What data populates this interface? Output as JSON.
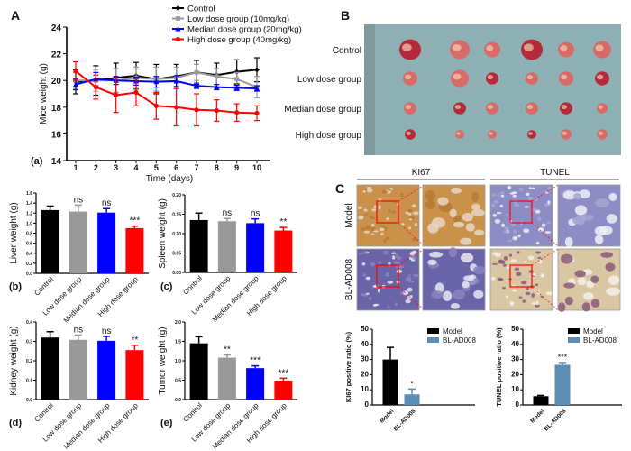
{
  "panel_labels": {
    "A": "A",
    "B": "B",
    "C": "C",
    "a": "(a)",
    "b": "(b)",
    "c": "(c)",
    "d": "(d)",
    "e": "(e)"
  },
  "photo_panel_B": {
    "row_labels": [
      "Control",
      "Low dose group",
      "Median dose group",
      "High dose group"
    ],
    "background": "#8fb0b5"
  },
  "photo_panel_C": {
    "column_headers": [
      "KI67",
      "TUNEL"
    ],
    "row_labels": [
      "Model",
      "BL-AD008"
    ]
  },
  "colors": {
    "control": "#000000",
    "low": "#999999",
    "median": "#0000ff",
    "high": "#ff0000",
    "model": "#000000",
    "bl": "#5b8db5"
  },
  "chart_data": [
    {
      "id": "a",
      "type": "line",
      "title": "",
      "xlabel": "Time (days)",
      "ylabel": "Mice weight (g)",
      "x": [
        1,
        2,
        3,
        4,
        5,
        6,
        7,
        8,
        9,
        10
      ],
      "xlim": [
        0.6,
        11
      ],
      "ylim": [
        14,
        24
      ],
      "yticks": [
        14,
        16,
        18,
        20,
        22,
        24
      ],
      "legend": "top-right",
      "series": [
        {
          "name": "Control",
          "color_key": "control",
          "marker": "diamond",
          "values": [
            19.9,
            20.0,
            20.2,
            20.35,
            20.1,
            20.3,
            20.6,
            20.4,
            20.65,
            20.8
          ],
          "errors": [
            0.9,
            1.1,
            1.1,
            1.0,
            1.1,
            0.9,
            0.9,
            0.9,
            0.9,
            0.9
          ]
        },
        {
          "name": "Low dose group (10mg/kg)",
          "color_key": "low",
          "marker": "square",
          "values": [
            20.0,
            20.0,
            20.0,
            20.2,
            20.1,
            20.2,
            20.6,
            20.3,
            20.1,
            19.5
          ],
          "errors": [
            0.6,
            0.8,
            0.9,
            0.8,
            0.9,
            0.8,
            0.6,
            0.6,
            0.5,
            0.8
          ]
        },
        {
          "name": "Median dose group (20mg/kg)",
          "color_key": "median",
          "marker": "triangle",
          "values": [
            19.7,
            20.1,
            20.0,
            19.95,
            19.9,
            19.95,
            19.6,
            19.5,
            19.45,
            19.4
          ],
          "errors": [
            0.4,
            0.5,
            0.3,
            0.3,
            0.4,
            0.4,
            0.2,
            0.2,
            0.2,
            0.2
          ]
        },
        {
          "name": "High dose group (40mg/kg)",
          "color_key": "high",
          "marker": "circle",
          "values": [
            20.7,
            19.5,
            18.9,
            19.1,
            18.1,
            18.0,
            17.8,
            17.75,
            17.6,
            17.55
          ],
          "errors": [
            0.7,
            0.9,
            1.3,
            1.0,
            1.0,
            1.4,
            1.2,
            0.8,
            0.65,
            0.55
          ]
        }
      ]
    },
    {
      "id": "b",
      "type": "bar",
      "ylabel": "Liver weight (g)",
      "categories": [
        "Control",
        "Low dose group",
        "Median dose group",
        "High dose group"
      ],
      "ylim": [
        0,
        1.6
      ],
      "yticks": [
        "0.0",
        "0.2",
        "0.4",
        "0.6",
        "0.8",
        "1.0",
        "1.2",
        "1.4",
        "1.6"
      ],
      "values": [
        1.26,
        1.23,
        1.21,
        0.9
      ],
      "errors": [
        0.08,
        0.13,
        0.08,
        0.04
      ],
      "significance": [
        "",
        "ns",
        "ns",
        "***"
      ],
      "color_keys": [
        "control",
        "low",
        "median",
        "high"
      ]
    },
    {
      "id": "c",
      "type": "bar",
      "ylabel": "Spleen weight (g)",
      "categories": [
        "Control",
        "Low dose group",
        "Median dose group",
        "High dose group"
      ],
      "ylim": [
        0,
        0.2
      ],
      "yticks": [
        "0.00",
        "0.05",
        "0.10",
        "0.15",
        "0.20"
      ],
      "values": [
        0.135,
        0.132,
        0.127,
        0.108
      ],
      "errors": [
        0.018,
        0.007,
        0.011,
        0.008
      ],
      "significance": [
        "",
        "ns",
        "ns",
        "**"
      ],
      "color_keys": [
        "control",
        "low",
        "median",
        "high"
      ]
    },
    {
      "id": "d",
      "type": "bar",
      "ylabel": "Kidney weight (g)",
      "categories": [
        "Control",
        "Low dose group",
        "Median dose group",
        "High dose group"
      ],
      "ylim": [
        0,
        0.4
      ],
      "yticks": [
        "0.0",
        "0.1",
        "0.2",
        "0.3",
        "0.4"
      ],
      "values": [
        0.32,
        0.308,
        0.303,
        0.255
      ],
      "errors": [
        0.03,
        0.025,
        0.023,
        0.025
      ],
      "significance": [
        "",
        "ns",
        "ns",
        "**"
      ],
      "color_keys": [
        "control",
        "low",
        "median",
        "high"
      ]
    },
    {
      "id": "e",
      "type": "bar",
      "ylabel": "Tumor weight (g)",
      "categories": [
        "Control",
        "Low dose group",
        "Median dose group",
        "High dose group"
      ],
      "ylim": [
        0,
        2.0
      ],
      "yticks": [
        "0.0",
        "0.5",
        "1.0",
        "1.5",
        "2.0"
      ],
      "values": [
        1.45,
        1.08,
        0.81,
        0.49
      ],
      "errors": [
        0.17,
        0.07,
        0.06,
        0.06
      ],
      "significance": [
        "",
        "**",
        "***",
        "***"
      ],
      "color_keys": [
        "control",
        "low",
        "median",
        "high"
      ]
    },
    {
      "id": "ki67",
      "type": "bar",
      "ylabel": "KI67 positive ratio (%)",
      "categories": [
        "Model",
        "BL-AD008"
      ],
      "ylim": [
        0,
        50
      ],
      "yticks": [
        "0",
        "10",
        "20",
        "30",
        "40",
        "50"
      ],
      "values": [
        30,
        7
      ],
      "errors": [
        8,
        3.5
      ],
      "significance": [
        "",
        "*"
      ],
      "color_keys": [
        "model",
        "bl"
      ],
      "legend": [
        "Model",
        "BL-AD008"
      ],
      "legend_position": "top-right"
    },
    {
      "id": "tunel",
      "type": "bar",
      "ylabel": "TUNEL positive ratio (%)",
      "categories": [
        "Model",
        "BL-AD008"
      ],
      "ylim": [
        0,
        50
      ],
      "yticks": [
        "0",
        "10",
        "20",
        "30",
        "40",
        "50"
      ],
      "values": [
        5.8,
        26.5
      ],
      "errors": [
        0.5,
        1.5
      ],
      "significance": [
        "",
        "***"
      ],
      "color_keys": [
        "model",
        "bl"
      ],
      "legend": [
        "Model",
        "BL-AD008"
      ],
      "legend_position": "top-right"
    }
  ]
}
